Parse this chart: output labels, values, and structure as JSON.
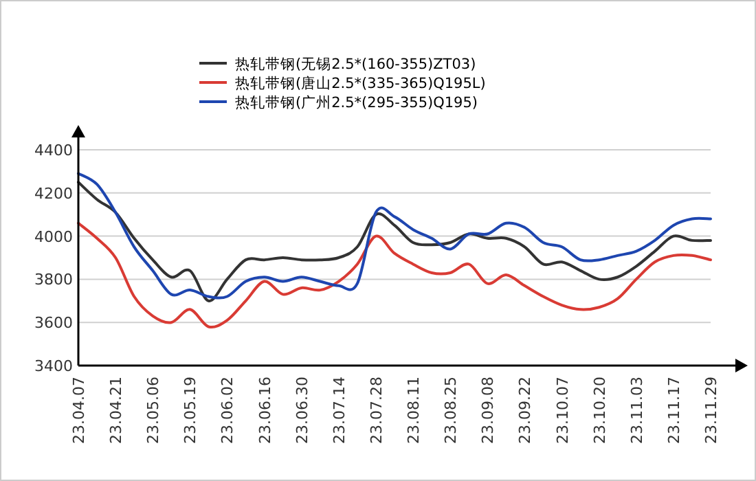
{
  "chart_data": {
    "type": "line",
    "legend": "top",
    "grid": "y",
    "marker": "none",
    "line_style": "solid",
    "ylim": [
      3400,
      4400
    ],
    "yticks": [
      3400,
      3600,
      3800,
      4000,
      4200,
      4400
    ],
    "categories": [
      "23.04.07",
      null,
      "23.04.21",
      null,
      "23.05.06",
      null,
      "23.05.19",
      null,
      "23.06.02",
      null,
      "23.06.16",
      null,
      "23.06.30",
      null,
      "23.07.14",
      null,
      "23.07.28",
      null,
      "23.08.11",
      null,
      "23.08.25",
      null,
      "23.09.08",
      null,
      "23.09.22",
      null,
      "23.10.07",
      null,
      "23.10.20",
      null,
      "23.11.03",
      null,
      "23.11.17",
      null,
      "23.11.29"
    ],
    "series": [
      {
        "name": "热轧带钢(无锡2.5*(160-355)ZT03)",
        "color": "#333333",
        "values": [
          4250,
          4170,
          4110,
          3990,
          3890,
          3810,
          3840,
          3700,
          3800,
          3890,
          3890,
          3900,
          3890,
          3890,
          3900,
          3950,
          4100,
          4050,
          3970,
          3960,
          3970,
          4010,
          3990,
          3990,
          3950,
          3870,
          3880,
          3840,
          3800,
          3810,
          3860,
          3930,
          4000,
          3980,
          3980
        ]
      },
      {
        "name": "热轧带钢(唐山2.5*(335-365)Q195L)",
        "color": "#d93b34",
        "values": [
          4060,
          3990,
          3900,
          3720,
          3630,
          3600,
          3660,
          3580,
          3610,
          3700,
          3790,
          3730,
          3760,
          3750,
          3790,
          3870,
          4000,
          3920,
          3870,
          3830,
          3830,
          3870,
          3780,
          3820,
          3770,
          3720,
          3680,
          3660,
          3670,
          3710,
          3800,
          3880,
          3910,
          3910,
          3890
        ]
      },
      {
        "name": "热轧带钢(广州2.5*(295-355)Q195)",
        "color": "#1e46b0",
        "values": [
          4290,
          4240,
          4110,
          3950,
          3840,
          3730,
          3750,
          3720,
          3720,
          3790,
          3810,
          3790,
          3810,
          3790,
          3770,
          3780,
          4110,
          4090,
          4030,
          3990,
          3940,
          4010,
          4010,
          4060,
          4040,
          3970,
          3950,
          3890,
          3890,
          3910,
          3930,
          3980,
          4050,
          4080,
          4080
        ]
      }
    ]
  }
}
